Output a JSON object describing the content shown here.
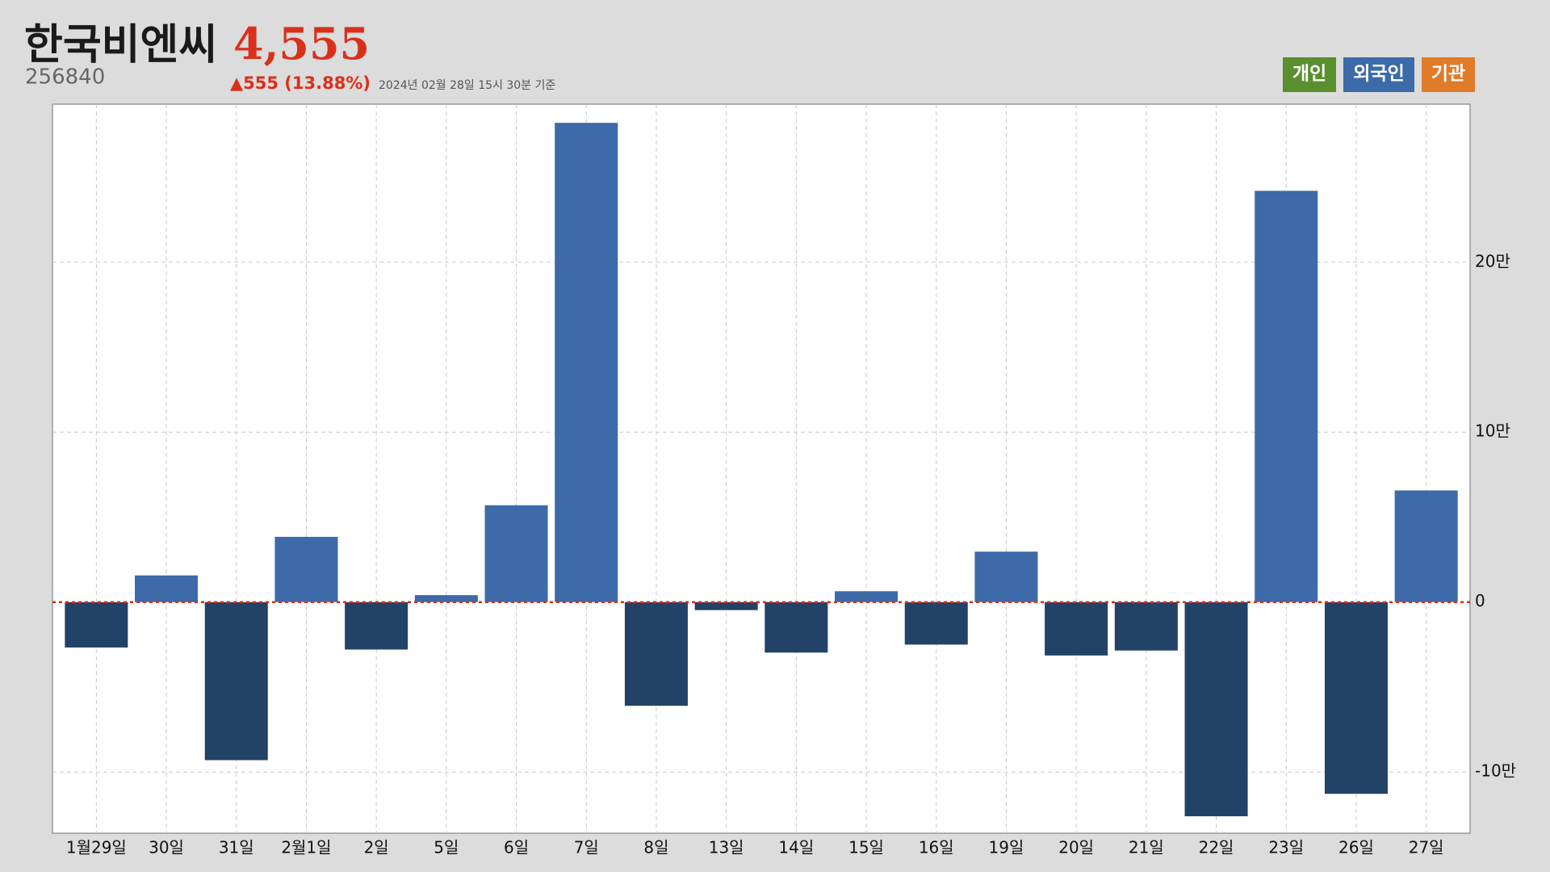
{
  "chart_data": {
    "type": "bar",
    "title": "한국비엔씨",
    "code": "256840",
    "price": "4,555",
    "change": "▲555 (13.88%)",
    "timestamp": "2024년 02월 28일 15시 30분 기준",
    "legend_buttons": [
      {
        "label": "개인",
        "color": "#5a8f2e"
      },
      {
        "label": "외국인",
        "color": "#3d6aa8"
      },
      {
        "label": "기관",
        "color": "#e07b28"
      }
    ],
    "categories": [
      "1월29일",
      "30일",
      "31일",
      "2월1일",
      "2일",
      "5일",
      "6일",
      "7일",
      "8일",
      "13일",
      "14일",
      "15일",
      "16일",
      "19일",
      "20일",
      "21일",
      "22일",
      "23일",
      "26일",
      "27일"
    ],
    "values": [
      -26700,
      15700,
      -93000,
      38400,
      -27900,
      4100,
      57000,
      282000,
      -61000,
      -4700,
      -29700,
      6400,
      -25000,
      29700,
      -31400,
      -28500,
      -126000,
      242000,
      -112800,
      65700
    ],
    "color": "#3d6aa8",
    "negative_color": "#234268",
    "zero_line_color": "#d9301c",
    "ylim": [
      -136000,
      293000
    ],
    "yticks": [
      {
        "value": -100000,
        "label": "-10만"
      },
      0,
      {
        "value": 100000,
        "label": "10만"
      },
      {
        "value": 200000,
        "label": "20만"
      }
    ],
    "grid": true
  }
}
